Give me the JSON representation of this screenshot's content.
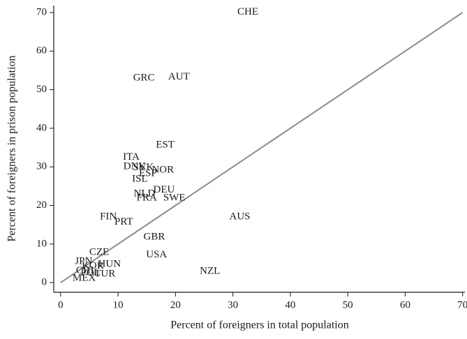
{
  "chart_data": {
    "type": "scatter",
    "x_label": "Percent of foreigners in total population",
    "y_label": "Percent of foreigners in prison population",
    "xlim": [
      -1.2,
      70.4
    ],
    "ylim": [
      -2.5,
      71.8
    ],
    "xticks": [
      0,
      10,
      20,
      30,
      40,
      50,
      60,
      70
    ],
    "yticks": [
      0,
      10,
      20,
      30,
      40,
      50,
      60,
      70
    ],
    "diagonal": true,
    "line_color": "#8c8c8c",
    "label_color": "#1a1a1a",
    "points": [
      {
        "label": "CHE",
        "x": 32.6,
        "y": 70.1
      },
      {
        "label": "GRC",
        "x": 14.5,
        "y": 53
      },
      {
        "label": "AUT",
        "x": 20.6,
        "y": 53.3
      },
      {
        "label": "EST",
        "x": 18.2,
        "y": 35.6
      },
      {
        "label": "ITA",
        "x": 12.3,
        "y": 32.5
      },
      {
        "label": "DNK",
        "x": 12.9,
        "y": 30
      },
      {
        "label": "SVK",
        "x": 14.4,
        "y": 29.8
      },
      {
        "label": "NOR",
        "x": 17.8,
        "y": 29.1
      },
      {
        "label": "ESP",
        "x": 15.2,
        "y": 28.2
      },
      {
        "label": "ISL",
        "x": 13.8,
        "y": 26.8
      },
      {
        "label": "DEU",
        "x": 18,
        "y": 24
      },
      {
        "label": "NLD",
        "x": 14.6,
        "y": 23
      },
      {
        "label": "FRA",
        "x": 15,
        "y": 21.9
      },
      {
        "label": "SWE",
        "x": 19.8,
        "y": 21.9
      },
      {
        "label": "AUS",
        "x": 31.2,
        "y": 17
      },
      {
        "label": "FIN",
        "x": 8.3,
        "y": 17
      },
      {
        "label": "PRT",
        "x": 11,
        "y": 15.7
      },
      {
        "label": "GBR",
        "x": 16.3,
        "y": 11.8
      },
      {
        "label": "USA",
        "x": 16.7,
        "y": 7.2
      },
      {
        "label": "NZL",
        "x": 26,
        "y": 2.9
      },
      {
        "label": "CZE",
        "x": 6.7,
        "y": 7.8
      },
      {
        "label": "JPN",
        "x": 4,
        "y": 5.4
      },
      {
        "label": "KOR",
        "x": 5.6,
        "y": 4.3
      },
      {
        "label": "HUN",
        "x": 8.5,
        "y": 4.7
      },
      {
        "label": "CHL",
        "x": 4.5,
        "y": 3
      },
      {
        "label": "POL",
        "x": 5.2,
        "y": 2.5
      },
      {
        "label": "TUR",
        "x": 7.7,
        "y": 2.2
      },
      {
        "label": "MEX",
        "x": 4.1,
        "y": 1.1
      }
    ]
  }
}
